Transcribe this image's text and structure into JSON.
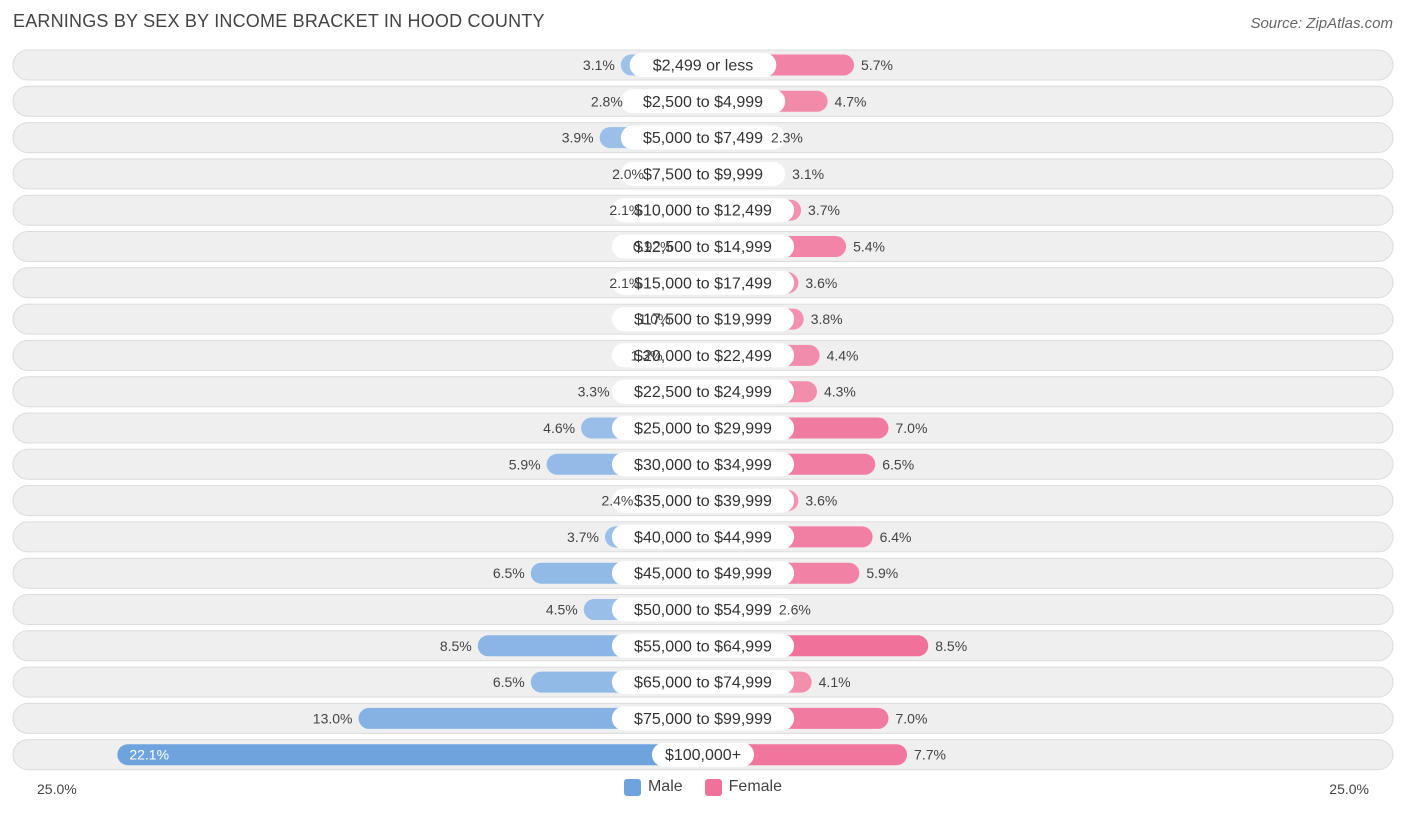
{
  "header": {
    "title": "EARNINGS BY SEX BY INCOME BRACKET IN HOOD COUNTY",
    "source": "Source: ZipAtlas.com"
  },
  "colors": {
    "male_light": "#a9c8ec",
    "male_dark": "#6fa3dd",
    "female_light": "#f5a9c0",
    "female_dark": "#f07199",
    "row_bg": "#efefef",
    "row_border": "#dcdcdc"
  },
  "legend": {
    "male_label": "Male",
    "female_label": "Female"
  },
  "axis": {
    "left_label": "25.0%",
    "right_label": "25.0%"
  },
  "chart_data": {
    "type": "bar",
    "orientation": "horizontal-diverging",
    "title": "EARNINGS BY SEX BY INCOME BRACKET IN HOOD COUNTY",
    "xlim": [
      -25,
      25
    ],
    "categories": [
      "$2,499 or less",
      "$2,500 to $4,999",
      "$5,000 to $7,499",
      "$7,500 to $9,999",
      "$10,000 to $12,499",
      "$12,500 to $14,999",
      "$15,000 to $17,499",
      "$17,500 to $19,999",
      "$20,000 to $22,499",
      "$22,500 to $24,999",
      "$25,000 to $29,999",
      "$30,000 to $34,999",
      "$35,000 to $39,999",
      "$40,000 to $44,999",
      "$45,000 to $49,999",
      "$50,000 to $54,999",
      "$55,000 to $64,999",
      "$65,000 to $74,999",
      "$75,000 to $99,999",
      "$100,000+"
    ],
    "series": [
      {
        "name": "Male",
        "values": [
          3.1,
          2.8,
          3.9,
          2.0,
          2.1,
          0.92,
          2.1,
          1.0,
          1.3,
          3.3,
          4.6,
          5.9,
          2.4,
          3.7,
          6.5,
          4.5,
          8.5,
          6.5,
          13.0,
          22.1
        ],
        "labels": [
          "3.1%",
          "2.8%",
          "3.9%",
          "2.0%",
          "2.1%",
          "0.92%",
          "2.1%",
          "1.0%",
          "1.3%",
          "3.3%",
          "4.6%",
          "5.9%",
          "2.4%",
          "3.7%",
          "6.5%",
          "4.5%",
          "8.5%",
          "6.5%",
          "13.0%",
          "22.1%"
        ]
      },
      {
        "name": "Female",
        "values": [
          5.7,
          4.7,
          2.3,
          3.1,
          3.7,
          5.4,
          3.6,
          3.8,
          4.4,
          4.3,
          7.0,
          6.5,
          3.6,
          6.4,
          5.9,
          2.6,
          8.5,
          4.1,
          7.0,
          7.7
        ],
        "labels": [
          "5.7%",
          "4.7%",
          "2.3%",
          "3.1%",
          "3.7%",
          "5.4%",
          "3.6%",
          "3.8%",
          "4.4%",
          "4.3%",
          "7.0%",
          "6.5%",
          "3.6%",
          "6.4%",
          "5.9%",
          "2.6%",
          "8.5%",
          "4.1%",
          "7.0%",
          "7.7%"
        ]
      }
    ]
  }
}
